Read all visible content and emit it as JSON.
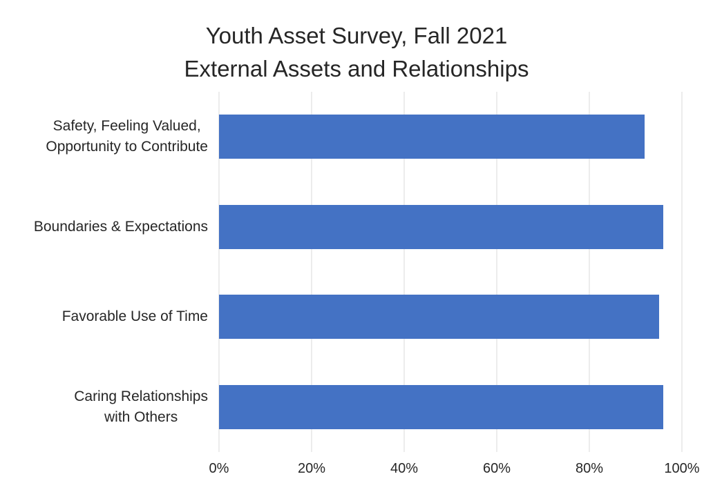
{
  "chart_data": {
    "type": "bar",
    "orientation": "horizontal",
    "title": "Youth Asset Survey, Fall 2021",
    "subtitle": "External Assets and Relationships",
    "categories": [
      "Safety, Feeling Valued,\nOpportunity to Contribute",
      "Boundaries & Expectations",
      "Favorable Use of Time",
      "Caring Relationships\nwith Others"
    ],
    "values": [
      92,
      96,
      95,
      96
    ],
    "value_unit": "%",
    "xlabel": "",
    "ylabel": "",
    "xlim": [
      0,
      100
    ],
    "x_tick_values": [
      0,
      20,
      40,
      60,
      80,
      100
    ],
    "x_tick_labels": [
      "0%",
      "20%",
      "40%",
      "60%",
      "80%",
      "100%"
    ],
    "grid": true,
    "legend": false,
    "colors": {
      "bar": "#4472C4",
      "gridline": "#D9D9D9",
      "text": "#262626",
      "background": "#FFFFFF"
    }
  }
}
